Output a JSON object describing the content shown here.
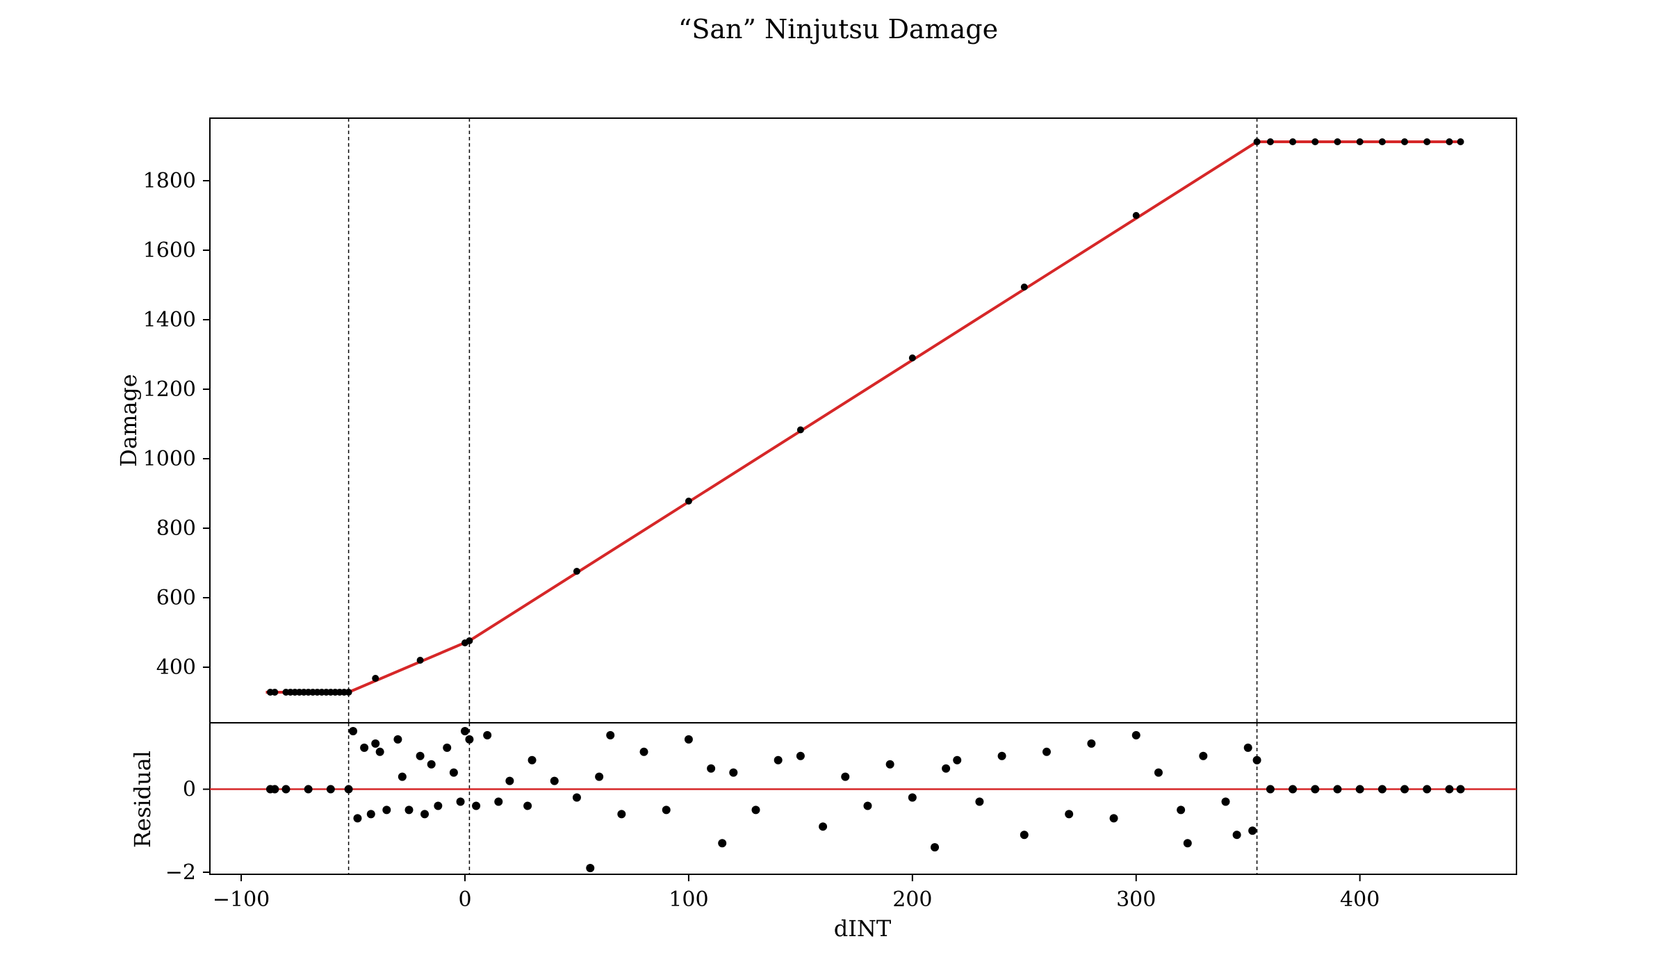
{
  "chart_data": {
    "type": "scatter",
    "title": "“San” Ninjutsu Damage",
    "xlabel": "dINT",
    "xlim": [
      -114,
      470
    ],
    "xticks": [
      -100,
      0,
      100,
      200,
      300,
      400
    ],
    "xtick_labels": [
      "−100",
      "0",
      "100",
      "200",
      "300",
      "400"
    ],
    "vlines": [
      -52,
      2,
      354
    ],
    "colors": {
      "points": "#000000",
      "fit": "#d62728",
      "vlines": "#000000"
    },
    "panels": [
      {
        "name": "main",
        "ylabel": "Damage",
        "ylim": [
          240,
          1980
        ],
        "yticks": [
          400,
          600,
          800,
          1000,
          1200,
          1400,
          1600,
          1800
        ],
        "ytick_labels": [
          "400",
          "600",
          "800",
          "1000",
          "1200",
          "1400",
          "1600",
          "1800"
        ],
        "series": [
          {
            "kind": "points",
            "x": [
              -87,
              -85,
              -80,
              -78,
              -76,
              -74,
              -72,
              -70,
              -68,
              -66,
              -64,
              -62,
              -60,
              -58,
              -56,
              -54,
              -52,
              -40,
              -20,
              0,
              2,
              50,
              100,
              150,
              200,
              250,
              300,
              354,
              360,
              370,
              380,
              390,
              400,
              410,
              420,
              430,
              440,
              445
            ],
            "y": [
              328,
              328,
              328,
              328,
              328,
              328,
              328,
              328,
              328,
              328,
              328,
              328,
              328,
              328,
              328,
              328,
              328,
              368,
              420,
              470,
              476,
              676,
              878,
              1083,
              1290,
              1494,
              1700,
              1912,
              1912,
              1912,
              1912,
              1912,
              1912,
              1912,
              1912,
              1912,
              1912,
              1912
            ]
          },
          {
            "kind": "fit",
            "x": [
              -89,
              -52,
              2,
              354,
              445
            ],
            "y": [
              328,
              328,
              476,
              1912,
              1912
            ]
          }
        ]
      },
      {
        "name": "residual",
        "ylabel": "Residual",
        "ylim": [
          -2.05,
          1.6
        ],
        "yticks": [
          -2,
          0
        ],
        "ytick_labels": [
          "−2",
          "0"
        ],
        "zero_line": true,
        "series": [
          {
            "kind": "points",
            "x": [
              -87,
              -85,
              -80,
              -70,
              -60,
              -52,
              -50,
              -48,
              -45,
              -42,
              -40,
              -38,
              -35,
              -30,
              -28,
              -25,
              -20,
              -18,
              -15,
              -12,
              -8,
              -5,
              -2,
              0,
              2,
              5,
              10,
              15,
              20,
              28,
              30,
              40,
              50,
              56,
              60,
              65,
              70,
              80,
              90,
              100,
              110,
              115,
              120,
              130,
              140,
              150,
              160,
              170,
              180,
              190,
              200,
              210,
              215,
              220,
              230,
              240,
              250,
              260,
              270,
              280,
              290,
              300,
              310,
              320,
              323,
              330,
              340,
              345,
              350,
              352,
              354,
              360,
              370,
              380,
              390,
              400,
              410,
              420,
              430,
              440,
              445
            ],
            "y": [
              0,
              0,
              0,
              0,
              0,
              0,
              1.4,
              -0.7,
              1.0,
              -0.6,
              1.1,
              0.9,
              -0.5,
              1.2,
              0.3,
              -0.5,
              0.8,
              -0.6,
              0.6,
              -0.4,
              1.0,
              0.4,
              -0.3,
              1.4,
              1.2,
              -0.4,
              1.3,
              -0.3,
              0.2,
              -0.4,
              0.7,
              0.2,
              -0.2,
              -1.9,
              0.3,
              1.3,
              -0.6,
              0.9,
              -0.5,
              1.2,
              0.5,
              -1.3,
              0.4,
              -0.5,
              0.7,
              0.8,
              -0.9,
              0.3,
              -0.4,
              0.6,
              -0.2,
              -1.4,
              0.5,
              0.7,
              -0.3,
              0.8,
              -1.1,
              0.9,
              -0.6,
              1.1,
              -0.7,
              1.3,
              0.4,
              -0.5,
              -1.3,
              0.8,
              -0.3,
              -1.1,
              1.0,
              -1.0,
              0.7,
              0,
              0,
              0,
              0,
              0,
              0,
              0,
              0,
              0,
              0
            ]
          }
        ]
      }
    ]
  }
}
